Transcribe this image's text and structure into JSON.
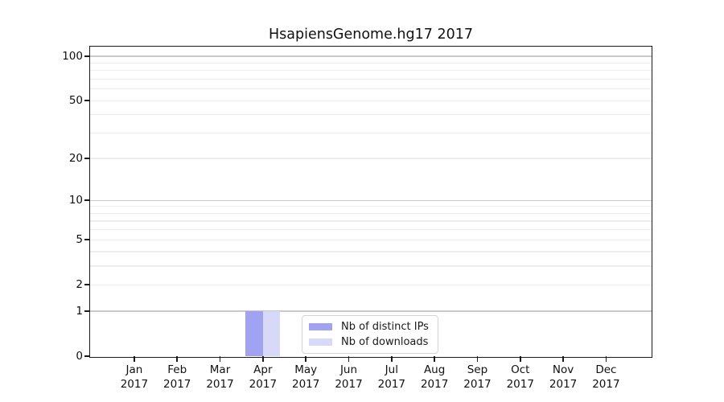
{
  "chart_data": {
    "type": "bar",
    "title": "HsapiensGenome.hg17 2017",
    "x_axis": {
      "categories": [
        "Jan",
        "Feb",
        "Mar",
        "Apr",
        "May",
        "Jun",
        "Jul",
        "Aug",
        "Sep",
        "Oct",
        "Nov",
        "Dec"
      ],
      "year_line": "2017"
    },
    "y_axis": {
      "scale": "log1p",
      "ylim": [
        0,
        100
      ],
      "tick_labels": [
        100,
        50,
        20,
        10,
        5,
        2,
        1,
        0
      ],
      "major_gridlines": [
        1,
        10,
        100
      ],
      "minor_gridlines": [
        2,
        3,
        4,
        5,
        6,
        7,
        8,
        9,
        20,
        30,
        40,
        50,
        60,
        70,
        80,
        90
      ],
      "grid": "horizontal"
    },
    "series": [
      {
        "name": "Nb of distinct IPs",
        "color": "#a2a2f2",
        "values": [
          0,
          0,
          0,
          1,
          0,
          0,
          0,
          0,
          0,
          0,
          0,
          0
        ]
      },
      {
        "name": "Nb of downloads",
        "color": "#d8d8f8",
        "values": [
          0,
          0,
          0,
          1,
          0,
          0,
          0,
          0,
          0,
          0,
          0,
          0
        ]
      }
    ],
    "legend_position": "inside lower-center"
  },
  "colors": {
    "spine": "#1a1a1a",
    "major_grid": "#c9c9c9",
    "minor_grid": "#ededed",
    "background": "#ffffff",
    "text": "#111111",
    "legend_border": "#d4d4d4"
  }
}
